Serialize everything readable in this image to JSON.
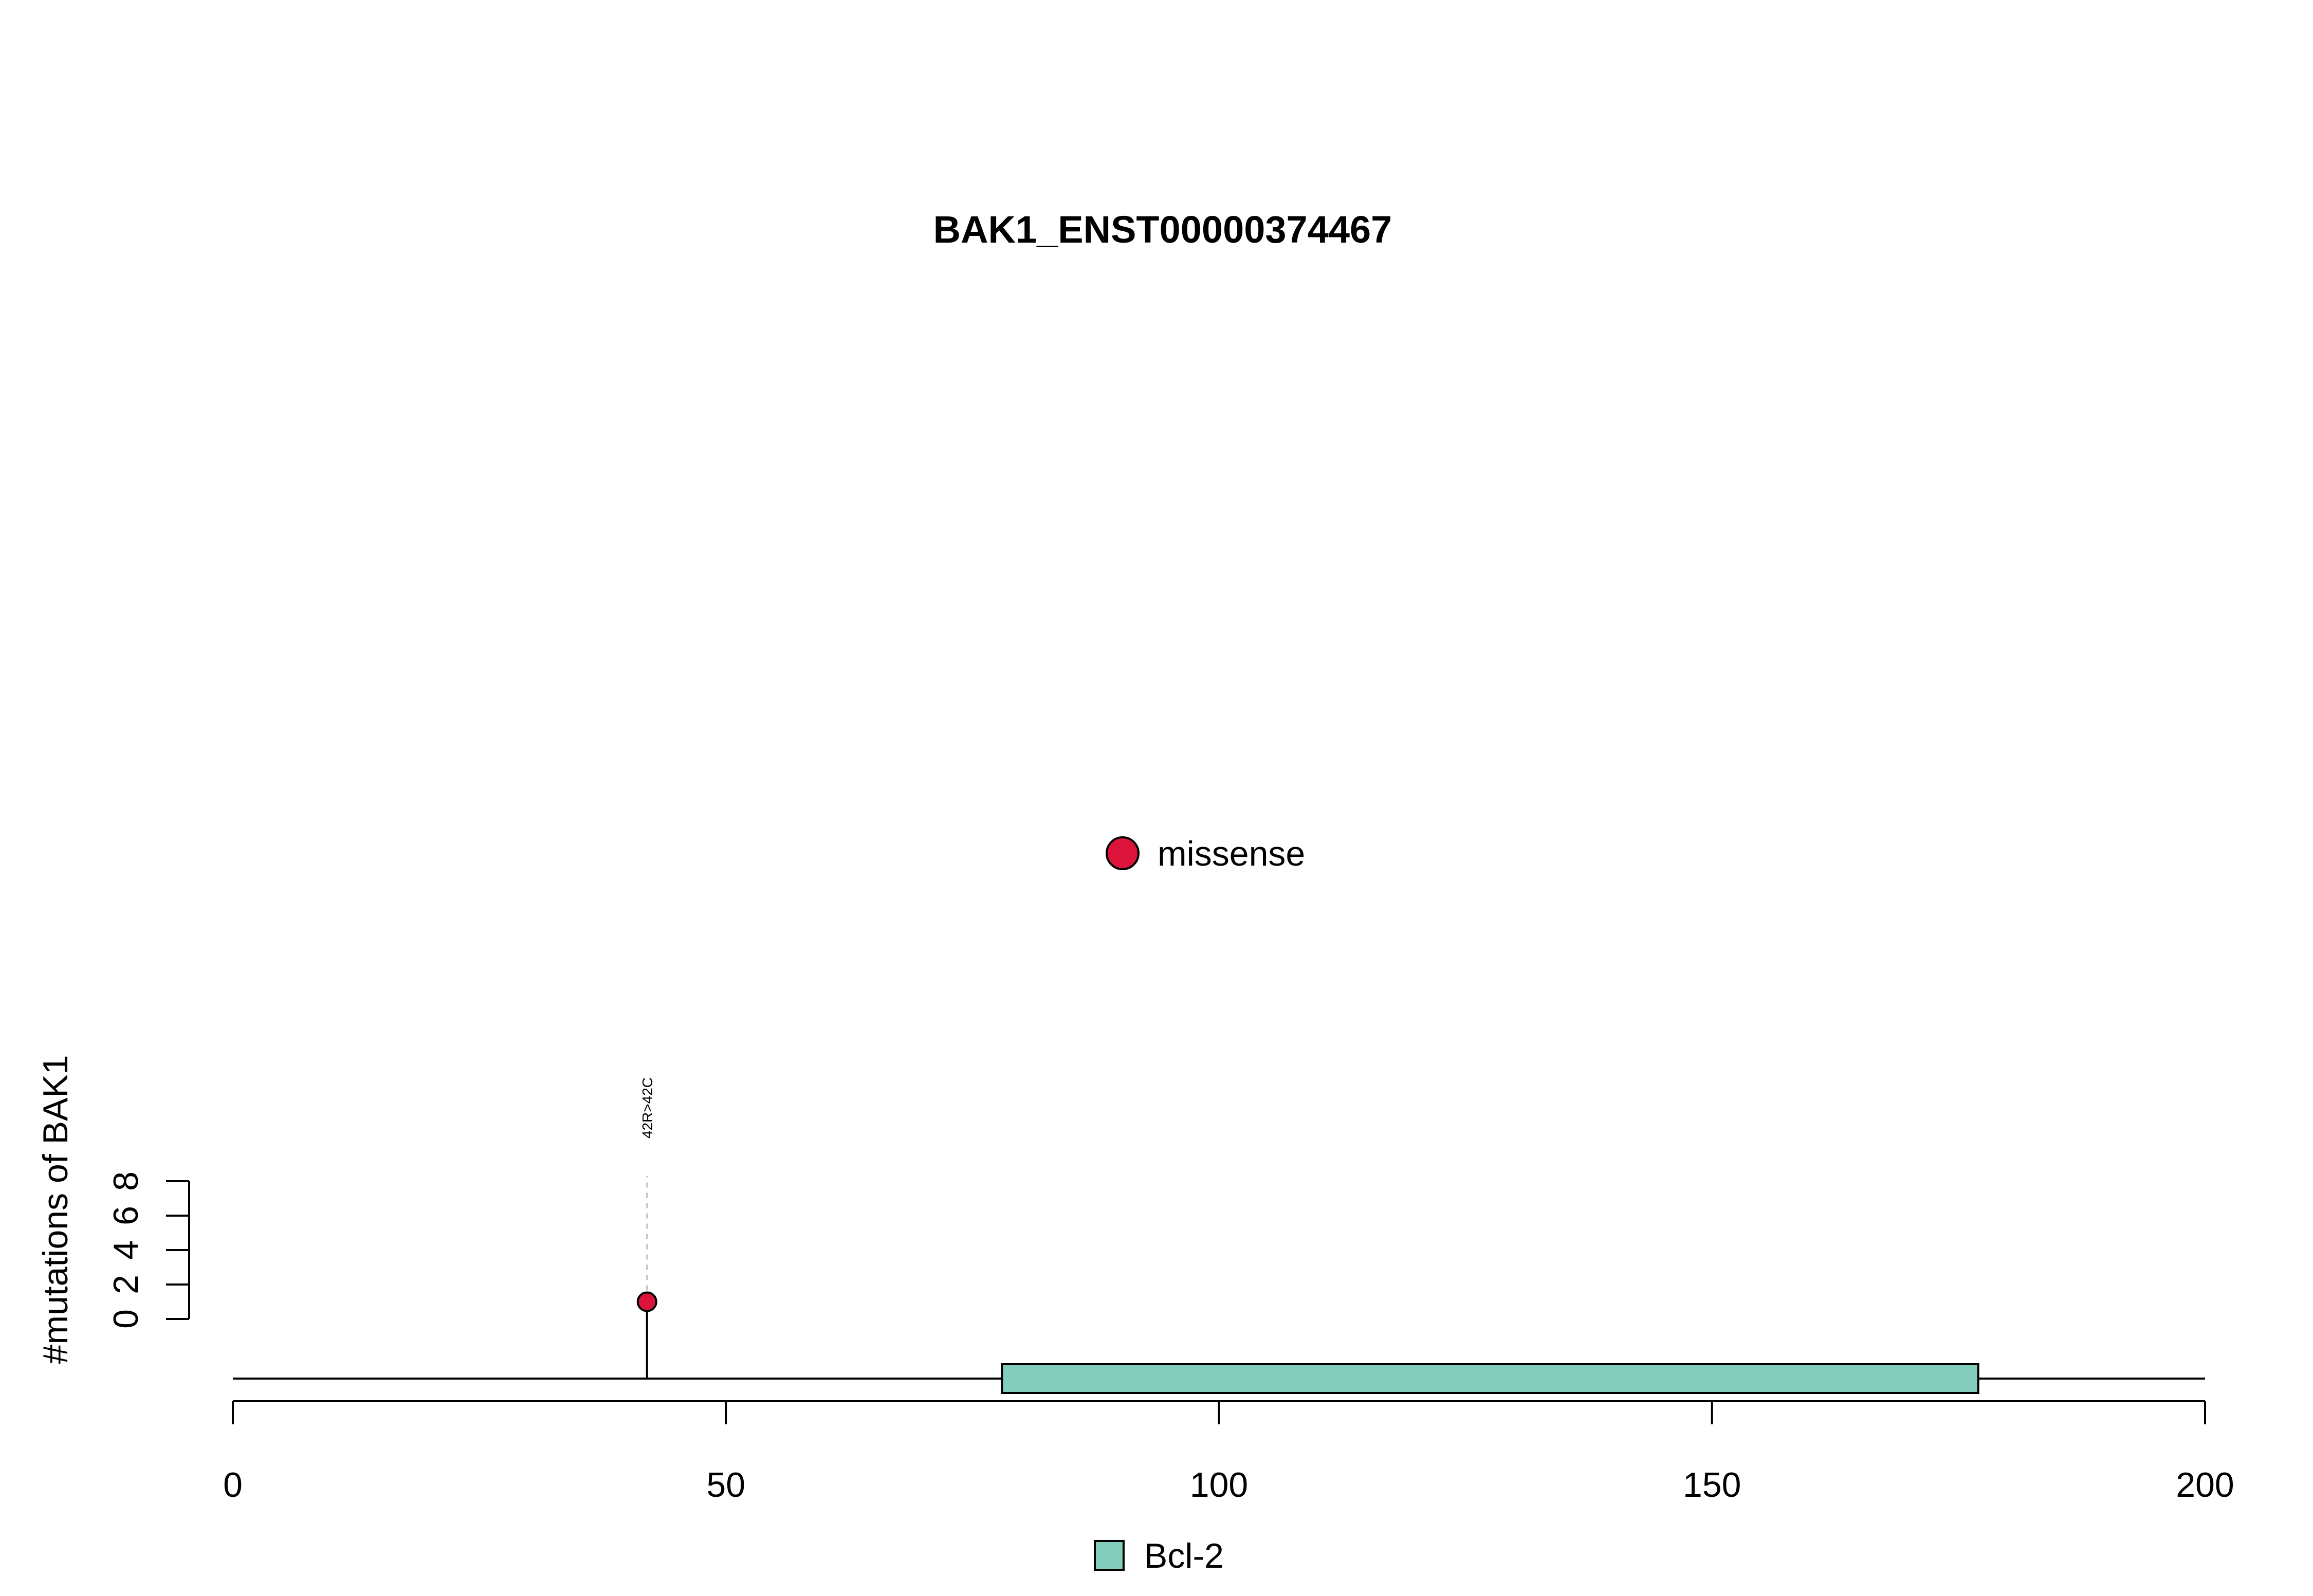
{
  "chart_data": {
    "type": "lollipop",
    "title": "BAK1_ENST00000374467",
    "ylabel": "#mutations of BAK1",
    "xlabel": "",
    "x_range": [
      0,
      200
    ],
    "x_ticks": [
      0,
      50,
      100,
      150,
      200
    ],
    "y_range": [
      0,
      8
    ],
    "y_ticks": [
      0,
      2,
      4,
      6,
      8
    ],
    "mutation_legend": [
      {
        "label": "missense",
        "color": "#DC143C"
      }
    ],
    "mutations": [
      {
        "position": 42,
        "count": 1,
        "label": "42R>42C",
        "type": "missense",
        "color": "#DC143C"
      }
    ],
    "domains": [
      {
        "name": "Bcl-2",
        "start": 78,
        "end": 177,
        "color": "#83CDBC"
      }
    ],
    "domain_legend": [
      {
        "label": "Bcl-2",
        "color": "#83CDBC"
      }
    ]
  }
}
